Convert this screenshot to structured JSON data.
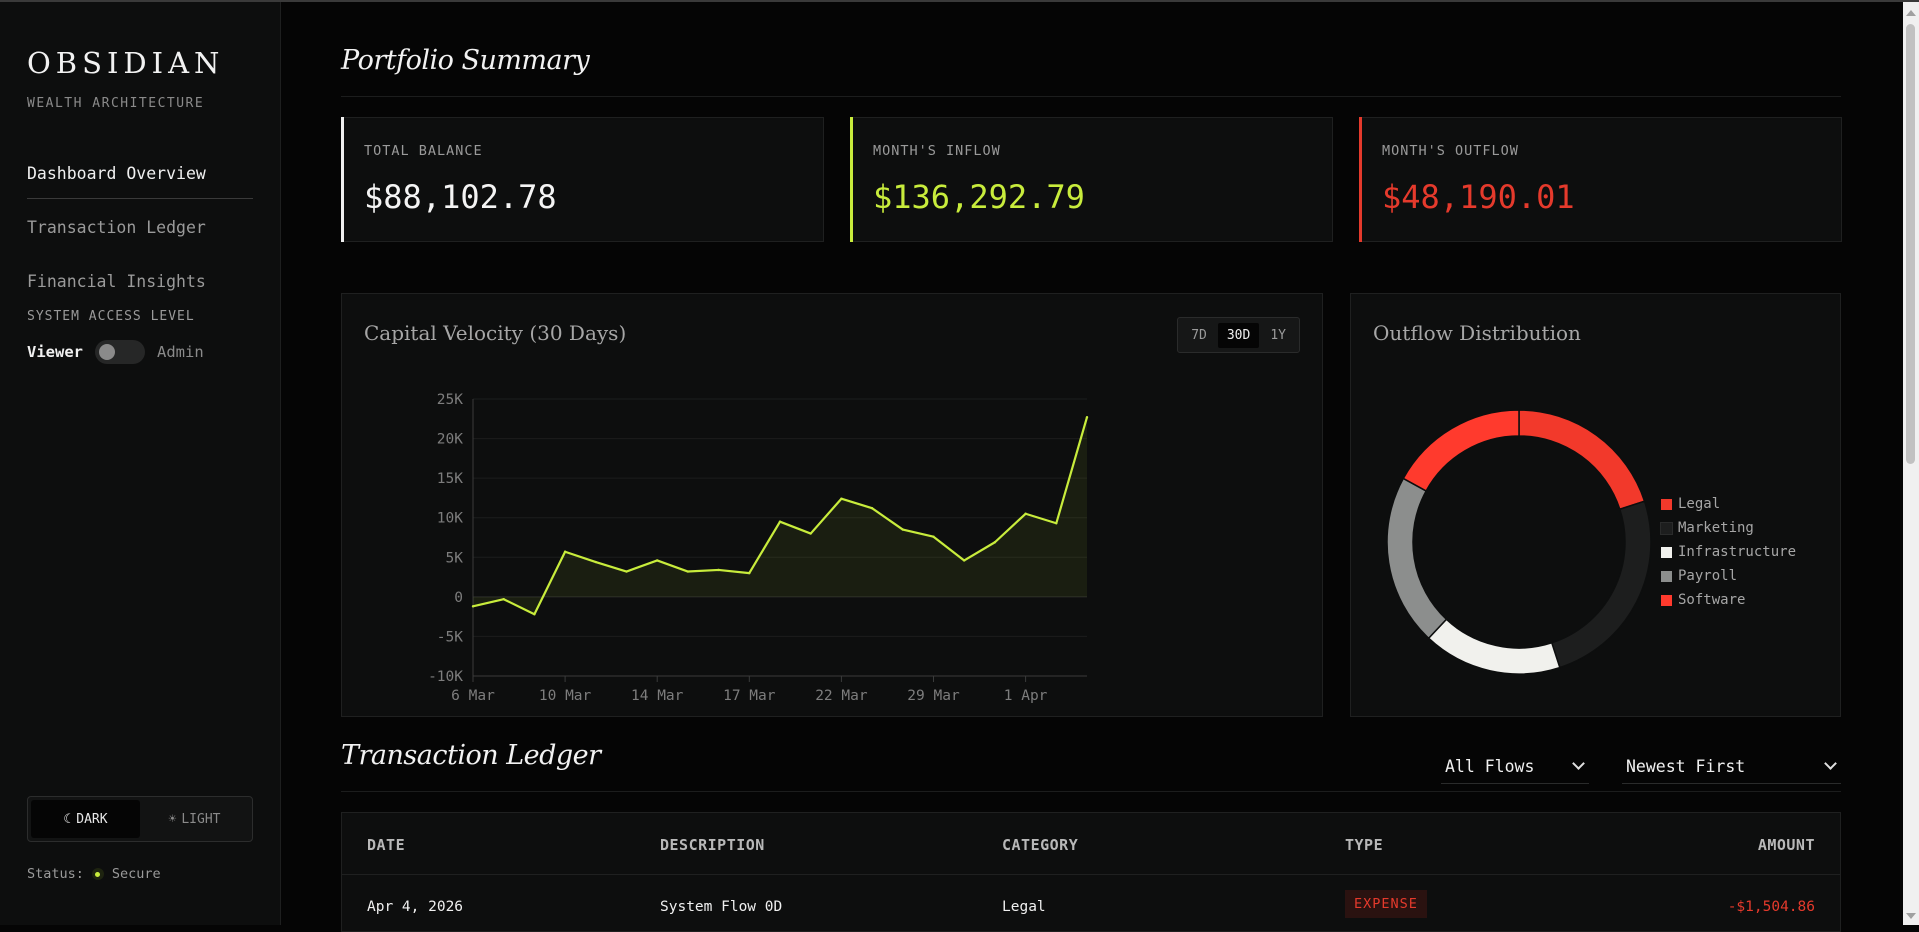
{
  "brand": {
    "name": "OBSIDIAN",
    "tagline": "WEALTH ARCHITECTURE"
  },
  "nav": {
    "items": [
      {
        "label": "Dashboard Overview"
      },
      {
        "label": "Transaction Ledger"
      },
      {
        "label": "Financial Insights"
      }
    ]
  },
  "access": {
    "label": "SYSTEM ACCESS LEVEL",
    "viewer": "Viewer",
    "admin": "Admin"
  },
  "theme": {
    "dark": "DARK",
    "light": "LIGHT",
    "moon_icon": "☾",
    "sun_icon": "☀"
  },
  "status": {
    "label": "Status:",
    "value": "Secure"
  },
  "summary": {
    "title": "Portfolio Summary",
    "cards": [
      {
        "label": "TOTAL BALANCE",
        "value": "$88,102.78",
        "accent": "#f0f0f0",
        "value_color": "#f4f4f4"
      },
      {
        "label": "MONTH'S INFLOW",
        "value": "$136,292.79",
        "accent": "#c8ec3c",
        "value_color": "#c8ec3c"
      },
      {
        "label": "MONTH'S OUTFLOW",
        "value": "$48,190.01",
        "accent": "#e53a2c",
        "value_color": "#e53a2c"
      }
    ]
  },
  "velocity": {
    "title": "Capital Velocity (30 Days)",
    "ranges": [
      "7D",
      "30D",
      "1Y"
    ],
    "active_range": "30D"
  },
  "chart_data": [
    {
      "type": "area",
      "title": "Capital Velocity (30 Days)",
      "line_color": "#c8ec3c",
      "ylim": [
        -10000,
        25000
      ],
      "yticks": [
        25000,
        20000,
        15000,
        10000,
        5000,
        0,
        -5000,
        -10000
      ],
      "ytick_labels": [
        "25K",
        "20K",
        "15K",
        "10K",
        "5K",
        "0",
        "-5K",
        "-10K"
      ],
      "xtick_labels": [
        "6 Mar",
        "10 Mar",
        "14 Mar",
        "17 Mar",
        "22 Mar",
        "29 Mar",
        "1 Apr"
      ],
      "values": [
        -1200,
        -300,
        -2200,
        5700,
        4400,
        3200,
        4600,
        3200,
        3400,
        3000,
        9500,
        8000,
        12400,
        11200,
        8500,
        7600,
        4600,
        6900,
        10500,
        9300,
        22700
      ],
      "grid": true
    },
    {
      "type": "pie",
      "title": "Outflow Distribution",
      "categories": [
        "Legal",
        "Marketing",
        "Infrastructure",
        "Payroll",
        "Software"
      ],
      "values": [
        20,
        25,
        17,
        21,
        17
      ],
      "colors": [
        "#f2392b",
        "#1d1e1e",
        "#f1f1ed",
        "#8c8e8d",
        "#ff3a2d"
      ],
      "legend": "right"
    }
  ],
  "outflow": {
    "title": "Outflow Distribution"
  },
  "ledger": {
    "title": "Transaction Ledger",
    "filter_value": "All Flows",
    "sort_value": "Newest First",
    "columns": [
      "DATE",
      "DESCRIPTION",
      "CATEGORY",
      "TYPE",
      "AMOUNT"
    ],
    "rows": [
      {
        "date": "Apr 4, 2026",
        "description": "System Flow 0D",
        "category": "Legal",
        "type": "EXPENSE",
        "amount": "-$1,504.86"
      }
    ]
  }
}
